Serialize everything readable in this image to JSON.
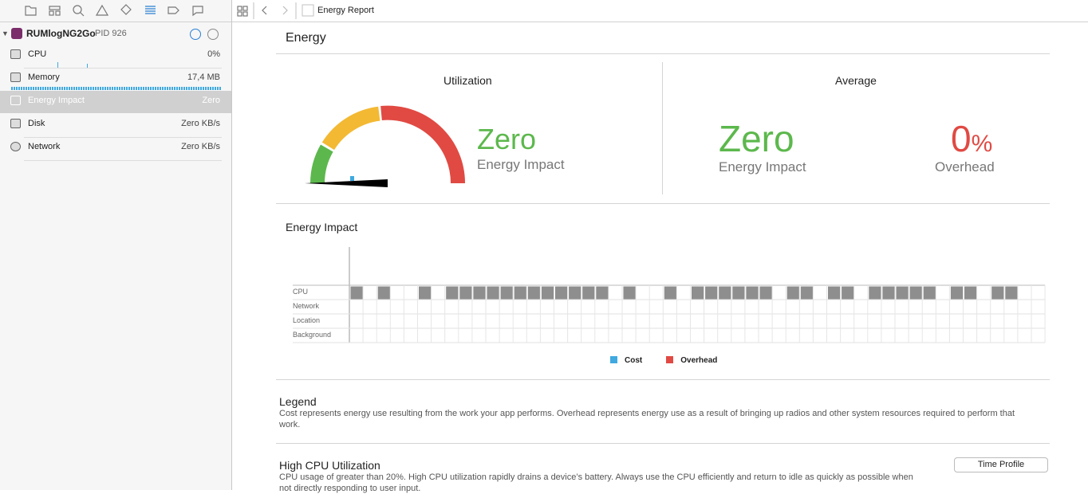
{
  "toolbar": {
    "breadcrumb": "Energy Report"
  },
  "sidebar": {
    "process": {
      "name": "RUMlogNG2Go",
      "pid": "PID 926"
    },
    "items": [
      {
        "label": "CPU",
        "value": "0%"
      },
      {
        "label": "Memory",
        "value": "17,4 MB"
      },
      {
        "label": "Energy Impact",
        "value": "Zero"
      },
      {
        "label": "Disk",
        "value": "Zero KB/s"
      },
      {
        "label": "Network",
        "value": "Zero KB/s"
      }
    ]
  },
  "report": {
    "title": "Energy",
    "utilization": {
      "heading": "Utilization",
      "value": "Zero",
      "label": "Energy Impact"
    },
    "average": {
      "heading": "Average",
      "impact_value": "Zero",
      "impact_label": "Energy Impact",
      "overhead_value": "0",
      "overhead_unit": "%",
      "overhead_label": "Overhead"
    },
    "energy_chart": {
      "title": "Energy Impact",
      "rows": [
        "CPU",
        "Network",
        "Location",
        "Background"
      ],
      "cpu_activity": [
        1,
        0,
        1,
        0,
        0,
        1,
        0,
        1,
        1,
        1,
        1,
        1,
        1,
        1,
        1,
        1,
        1,
        1,
        1,
        0,
        1,
        0,
        0,
        1,
        0,
        1,
        1,
        1,
        1,
        1,
        1,
        0,
        1,
        1,
        0,
        1,
        1,
        0,
        1,
        1,
        1,
        1,
        1,
        0,
        1,
        1,
        0,
        1,
        1,
        0,
        0
      ],
      "legend": [
        {
          "name": "Cost",
          "color": "#3fa9e0"
        },
        {
          "name": "Overhead",
          "color": "#e04a43"
        }
      ]
    },
    "legend_section": {
      "title": "Legend",
      "text": "Cost represents energy use resulting from the work your app performs. Overhead represents energy use as a result of bringing up radios and other system resources required to perform that work."
    },
    "high_cpu": {
      "title": "High CPU Utilization",
      "text": "CPU usage of greater than 20%. High CPU utilization rapidly drains a device’s battery.  Always use the CPU efficiently and return to idle as quickly as possible when not directly responding to user input.",
      "button": "Time Profile"
    }
  }
}
